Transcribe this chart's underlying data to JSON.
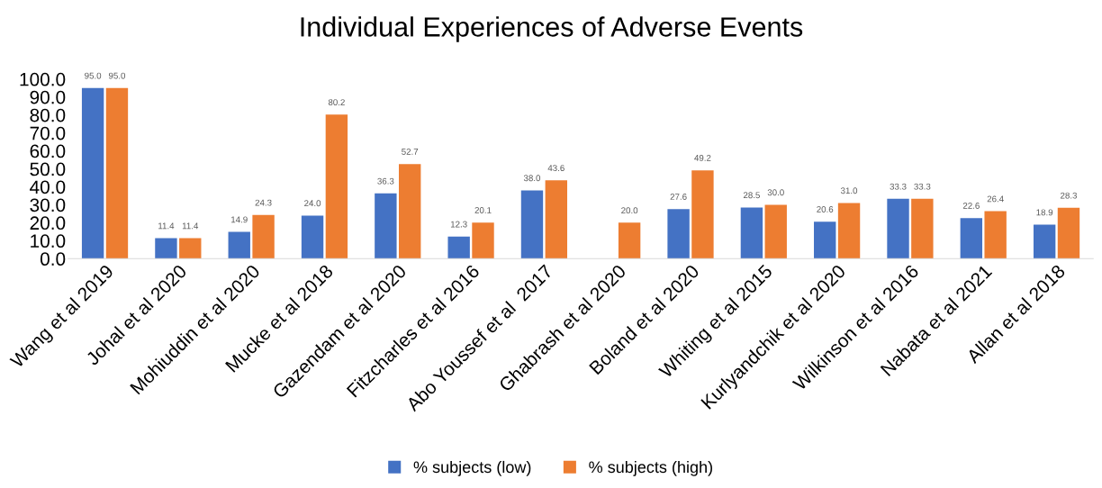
{
  "chart_data": {
    "type": "bar",
    "title": "Individual Experiences of Adverse Events",
    "categories": [
      "Wang et al 2019",
      "Johal et al 2020",
      "Mohiuddin et al 2020",
      "Mucke et al 2018",
      "Gazendam et al 2020",
      "Fitzcharles et al 2016",
      "Abo Youssef et al  2017",
      "Ghabrash et al 2020",
      "Boland et al 2020",
      "Whiting et al 2015",
      "Kurlyandchik et al 2020",
      "Wilkinson et al 2016",
      "Nabata et al 2021",
      "Allan et al 2018"
    ],
    "series": [
      {
        "name": "% subjects (low)",
        "color": "#4472c4",
        "values": [
          95.0,
          11.4,
          14.9,
          24.0,
          36.3,
          12.3,
          38.0,
          null,
          27.6,
          28.5,
          20.6,
          33.3,
          22.6,
          18.9
        ],
        "value_labels": [
          "95.0",
          "11.4",
          "14.9",
          "24.0",
          "36.3",
          "12.3",
          "38.0",
          null,
          "27.6",
          "28.5",
          "20.6",
          "33.3",
          "22.6",
          "18.9"
        ]
      },
      {
        "name": "% subjects (high)",
        "color": "#ed7d31",
        "values": [
          95.0,
          11.4,
          24.3,
          80.2,
          52.7,
          20.1,
          43.6,
          20.0,
          49.2,
          30.0,
          31.0,
          33.3,
          26.4,
          28.3
        ],
        "value_labels": [
          "95.0",
          "11.4",
          "24.3",
          "80.2",
          "52.7",
          "20.1",
          "43.6",
          "20.0",
          "49.2",
          "30.0",
          "31.0",
          "33.3",
          "26.4",
          "28.3"
        ]
      }
    ],
    "ylim": [
      0,
      100
    ],
    "yticks": [
      {
        "value": 0,
        "label": "0.0"
      },
      {
        "value": 10,
        "label": "10.0"
      },
      {
        "value": 20,
        "label": "20.0"
      },
      {
        "value": 30,
        "label": "30.0"
      },
      {
        "value": 40,
        "label": "40.0"
      },
      {
        "value": 50,
        "label": "50.0"
      },
      {
        "value": 60,
        "label": "60.0"
      },
      {
        "value": 70,
        "label": "70.0"
      },
      {
        "value": 80,
        "label": "80.0"
      },
      {
        "value": 90,
        "label": "90.0"
      },
      {
        "value": 100,
        "label": "100.0"
      }
    ],
    "grid": false,
    "legend": "bottom"
  }
}
